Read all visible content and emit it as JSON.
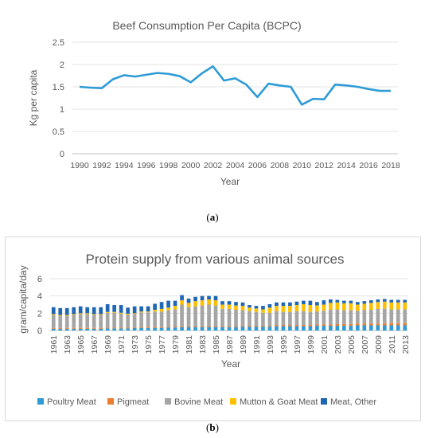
{
  "chart_data": [
    {
      "type": "line",
      "title": "Beef Consumption Per Capita (BCPC)",
      "xlabel": "Year",
      "ylabel": "Kg per capita",
      "ylim": [
        0,
        2.5
      ],
      "yticks": [
        "0",
        "0.5",
        "1",
        "1.5",
        "2",
        "2.5"
      ],
      "xtick_labels": [
        "1990",
        "1992",
        "1994",
        "1996",
        "1998",
        "2000",
        "2002",
        "2004",
        "2006",
        "2008",
        "2010",
        "2012",
        "2014",
        "2016",
        "2018"
      ],
      "x": [
        1990,
        1991,
        1992,
        1993,
        1994,
        1995,
        1996,
        1997,
        1998,
        1999,
        2000,
        2001,
        2002,
        2003,
        2004,
        2005,
        2006,
        2007,
        2008,
        2009,
        2010,
        2011,
        2012,
        2013,
        2014,
        2015,
        2016,
        2017,
        2018
      ],
      "series": [
        {
          "color": "#2e9bd6",
          "values": [
            1.5,
            1.48,
            1.47,
            1.67,
            1.76,
            1.73,
            1.77,
            1.81,
            1.79,
            1.74,
            1.6,
            1.8,
            1.96,
            1.64,
            1.69,
            1.55,
            1.27,
            1.57,
            1.53,
            1.5,
            1.1,
            1.23,
            1.22,
            1.55,
            1.53,
            1.5,
            1.45,
            1.41,
            1.41
          ]
        }
      ],
      "grid": true
    },
    {
      "type": "bar",
      "stacked": true,
      "title": "Protein supply from various animal sources",
      "xlabel": "Year",
      "ylabel": "gram/capita/day",
      "ylim": [
        0,
        6
      ],
      "yticks": [
        "0",
        "2",
        "4",
        "6"
      ],
      "legend_position": "bottom",
      "categories": [
        "1961",
        "1962",
        "1963",
        "1964",
        "1965",
        "1966",
        "1967",
        "1968",
        "1969",
        "1970",
        "1971",
        "1972",
        "1973",
        "1974",
        "1975",
        "1976",
        "1977",
        "1978",
        "1979",
        "1980",
        "1981",
        "1982",
        "1983",
        "1984",
        "1985",
        "1986",
        "1987",
        "1988",
        "1989",
        "1990",
        "1991",
        "1992",
        "1993",
        "1994",
        "1995",
        "1996",
        "1997",
        "1998",
        "1999",
        "2000",
        "2001",
        "2002",
        "2003",
        "2004",
        "2005",
        "2006",
        "2007",
        "2008",
        "2009",
        "2010",
        "2011",
        "2012",
        "2013"
      ],
      "xtick_labels": [
        "1961",
        "1963",
        "1965",
        "1967",
        "1969",
        "1971",
        "1973",
        "1975",
        "1977",
        "1979",
        "1981",
        "1983",
        "1985",
        "1987",
        "1989",
        "1991",
        "1993",
        "1995",
        "1997",
        "1999",
        "2001",
        "2003",
        "2005",
        "2007",
        "2009",
        "2011",
        "2013"
      ],
      "series": [
        {
          "name": "Poultry Meat",
          "color": "#2e9bd6",
          "values": [
            0.2,
            0.2,
            0.2,
            0.2,
            0.2,
            0.2,
            0.2,
            0.2,
            0.25,
            0.25,
            0.25,
            0.25,
            0.3,
            0.3,
            0.3,
            0.3,
            0.3,
            0.35,
            0.35,
            0.4,
            0.4,
            0.4,
            0.4,
            0.4,
            0.4,
            0.4,
            0.4,
            0.4,
            0.45,
            0.45,
            0.45,
            0.45,
            0.45,
            0.5,
            0.5,
            0.5,
            0.5,
            0.5,
            0.5,
            0.55,
            0.55,
            0.55,
            0.55,
            0.55,
            0.55,
            0.6,
            0.6,
            0.6,
            0.6,
            0.6,
            0.6,
            0.6,
            0.6
          ]
        },
        {
          "name": "Pigmeat",
          "color": "#ed7d31",
          "values": [
            0.1,
            0.1,
            0.1,
            0.1,
            0.1,
            0.1,
            0.1,
            0.1,
            0.1,
            0.1,
            0.1,
            0.1,
            0.1,
            0.1,
            0.1,
            0.1,
            0.1,
            0.1,
            0.1,
            0.1,
            0.1,
            0.1,
            0.1,
            0.1,
            0.1,
            0.1,
            0.1,
            0.1,
            0.1,
            0.1,
            0.1,
            0.1,
            0.1,
            0.15,
            0.15,
            0.15,
            0.15,
            0.15,
            0.15,
            0.15,
            0.15,
            0.15,
            0.2,
            0.2,
            0.2,
            0.2,
            0.2,
            0.2,
            0.2,
            0.25,
            0.25,
            0.25,
            0.25
          ]
        },
        {
          "name": "Bovine Meat",
          "color": "#a5a5a5",
          "values": [
            1.5,
            1.4,
            1.4,
            1.5,
            1.6,
            1.6,
            1.5,
            1.5,
            1.7,
            1.7,
            1.6,
            1.5,
            1.5,
            1.7,
            1.7,
            1.8,
            1.8,
            1.9,
            2.0,
            2.5,
            2.2,
            2.3,
            2.4,
            2.5,
            2.4,
            2.0,
            2.0,
            1.9,
            1.8,
            1.7,
            1.6,
            1.5,
            1.5,
            1.6,
            1.5,
            1.5,
            1.6,
            1.6,
            1.5,
            1.5,
            1.6,
            1.7,
            1.7,
            1.6,
            1.6,
            1.5,
            1.6,
            1.6,
            1.7,
            1.7,
            1.6,
            1.6,
            1.6
          ]
        },
        {
          "name": "Mutton & Goat Meat",
          "color": "#ffc000",
          "values": [
            0.1,
            0.1,
            0.1,
            0.1,
            0.1,
            0.1,
            0.1,
            0.1,
            0.1,
            0.1,
            0.1,
            0.1,
            0.1,
            0.1,
            0.1,
            0.2,
            0.3,
            0.3,
            0.4,
            0.5,
            0.5,
            0.6,
            0.6,
            0.6,
            0.6,
            0.5,
            0.5,
            0.5,
            0.5,
            0.4,
            0.4,
            0.4,
            0.6,
            0.6,
            0.7,
            0.7,
            0.7,
            0.8,
            0.8,
            0.7,
            0.7,
            0.8,
            0.8,
            0.8,
            0.8,
            0.7,
            0.7,
            0.8,
            0.8,
            0.8,
            0.8,
            0.8,
            0.8
          ]
        },
        {
          "name": "Meat, Other",
          "color": "#1f66b5",
          "values": [
            0.8,
            0.8,
            0.8,
            0.8,
            0.8,
            0.7,
            0.8,
            0.8,
            0.9,
            0.8,
            0.9,
            0.7,
            0.8,
            0.6,
            0.6,
            0.7,
            0.8,
            0.8,
            0.6,
            0.6,
            0.5,
            0.5,
            0.5,
            0.4,
            0.5,
            0.4,
            0.4,
            0.4,
            0.4,
            0.3,
            0.3,
            0.4,
            0.4,
            0.4,
            0.4,
            0.4,
            0.4,
            0.4,
            0.5,
            0.4,
            0.5,
            0.4,
            0.3,
            0.3,
            0.3,
            0.3,
            0.3,
            0.3,
            0.3,
            0.3,
            0.3,
            0.3,
            0.3
          ]
        }
      ],
      "grid": true
    }
  ],
  "captions": {
    "a": "(a)",
    "a_letter": "a",
    "b": "(b)",
    "b_letter": "b"
  }
}
